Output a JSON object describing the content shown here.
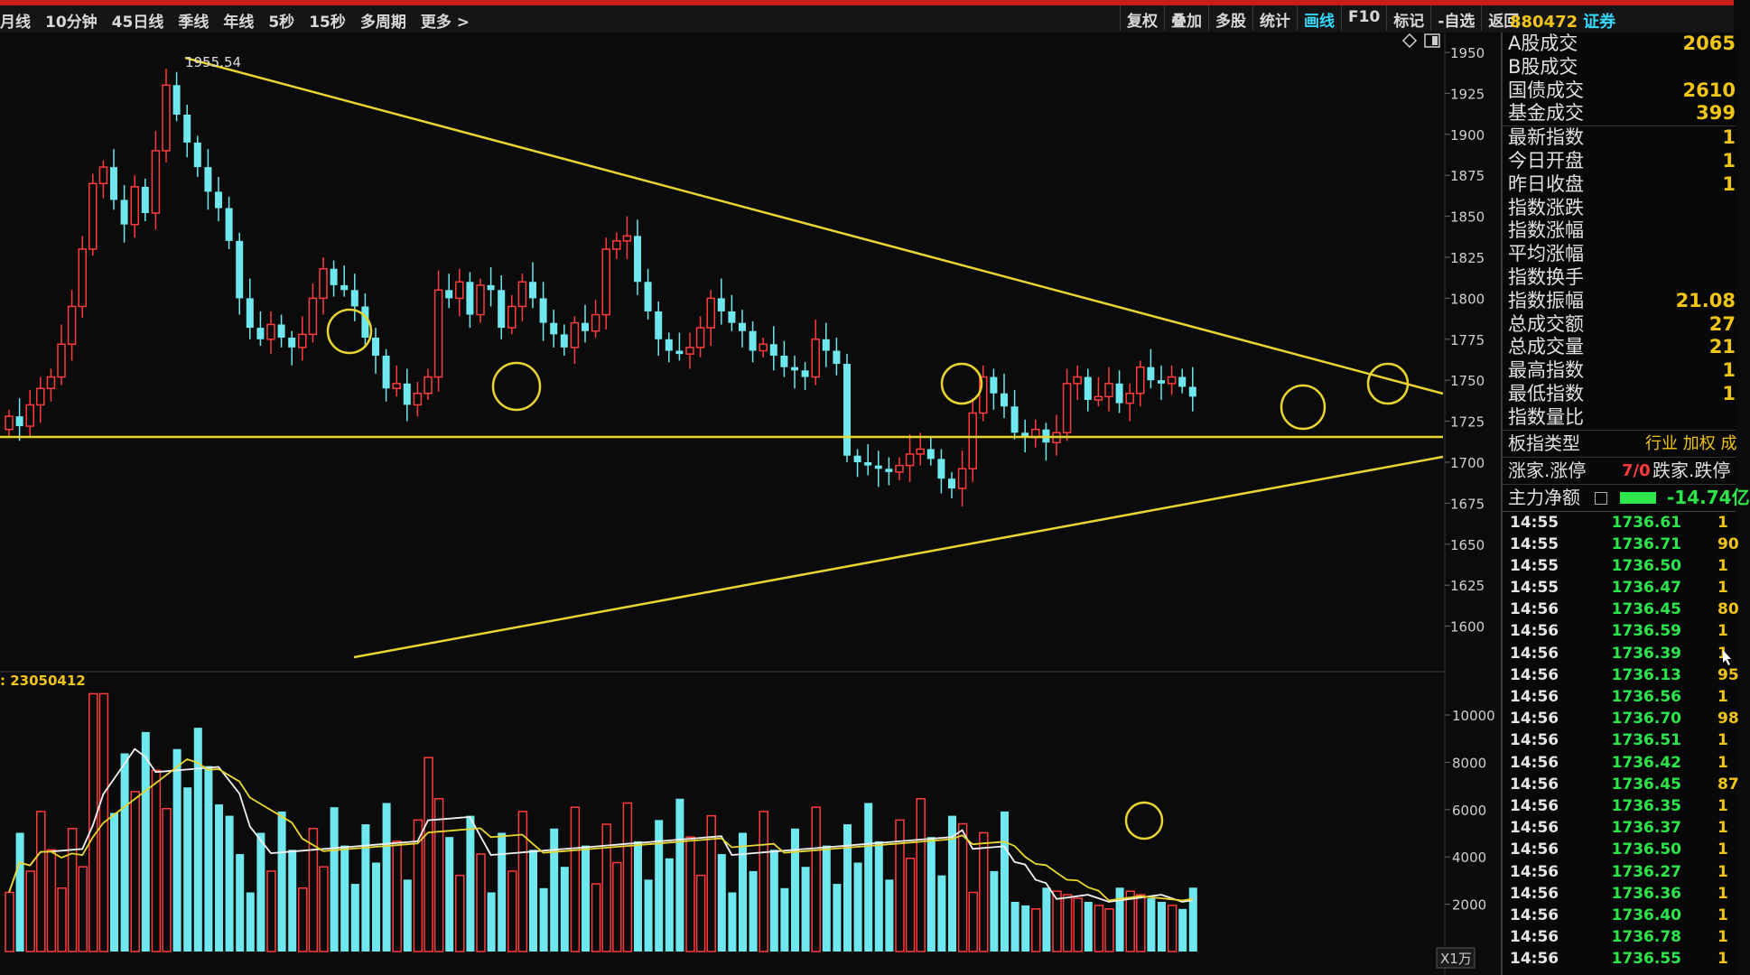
{
  "toolbar": {
    "periods": [
      "月线",
      "10分钟",
      "45日线",
      "季线",
      "年线",
      "5秒",
      "15秒",
      "多周期",
      "更多 >"
    ],
    "tools": [
      "复权",
      "叠加",
      "多股",
      "统计",
      "画线",
      "F10",
      "标记",
      "-自选",
      "返回"
    ],
    "active_tool": "画线"
  },
  "security": {
    "code": "880472",
    "name": "证券"
  },
  "price_chart": {
    "y_axis_ticks": [
      "1950",
      "1925",
      "1900",
      "1875",
      "1850",
      "1825",
      "1800",
      "1775",
      "1750",
      "1725",
      "1700",
      "1675",
      "1650",
      "1625",
      "1600"
    ],
    "high_label": "1955.54",
    "up_color": "#ff3b3b",
    "down_color": "#6ee8ee",
    "line_color": "#e8d531"
  },
  "volume_chart": {
    "label": ": 23050412",
    "y_axis_ticks": [
      "10000",
      "8000",
      "6000",
      "4000",
      "2000"
    ],
    "unit": "X1万"
  },
  "info_panel": {
    "rows": [
      {
        "label": "A股成交",
        "value": "2065"
      },
      {
        "label": "B股成交",
        "value": ""
      },
      {
        "label": "国债成交",
        "value": "2610"
      },
      {
        "label": "基金成交",
        "value": "399"
      },
      {
        "label": "最新指数",
        "value": "1"
      },
      {
        "label": "今日开盘",
        "value": "1"
      },
      {
        "label": "昨日收盘",
        "value": "1"
      },
      {
        "label": "指数涨跌",
        "value": ""
      },
      {
        "label": "指数涨幅",
        "value": ""
      },
      {
        "label": "平均涨幅",
        "value": ""
      },
      {
        "label": "指数换手",
        "value": ""
      },
      {
        "label": "指数振幅",
        "value": "21.08"
      },
      {
        "label": "总成交额",
        "value": "27"
      },
      {
        "label": "总成交量",
        "value": "21"
      },
      {
        "label": "最高指数",
        "value": "1"
      },
      {
        "label": "最低指数",
        "value": "1"
      },
      {
        "label": "指数量比",
        "value": ""
      }
    ],
    "board_type": {
      "label": "板指类型",
      "value": "行业 加权 成"
    },
    "limit": {
      "label": "涨家.涨停",
      "value": "7/0",
      "label2": "跌家.跌停"
    },
    "main_flow": {
      "label": "主力净额",
      "value": "-14.74亿"
    }
  },
  "ticks": [
    {
      "time": "14:55",
      "price": "1736.61",
      "vol": "1"
    },
    {
      "time": "14:55",
      "price": "1736.71",
      "vol": "90"
    },
    {
      "time": "14:55",
      "price": "1736.50",
      "vol": "1"
    },
    {
      "time": "14:55",
      "price": "1736.47",
      "vol": "1"
    },
    {
      "time": "14:56",
      "price": "1736.45",
      "vol": "80"
    },
    {
      "time": "14:56",
      "price": "1736.59",
      "vol": "1"
    },
    {
      "time": "14:56",
      "price": "1736.39",
      "vol": "1"
    },
    {
      "time": "14:56",
      "price": "1736.13",
      "vol": "95"
    },
    {
      "time": "14:56",
      "price": "1736.56",
      "vol": "1"
    },
    {
      "time": "14:56",
      "price": "1736.70",
      "vol": "98"
    },
    {
      "time": "14:56",
      "price": "1736.51",
      "vol": "1"
    },
    {
      "time": "14:56",
      "price": "1736.42",
      "vol": "1"
    },
    {
      "time": "14:56",
      "price": "1736.45",
      "vol": "87"
    },
    {
      "time": "14:56",
      "price": "1736.35",
      "vol": "1"
    },
    {
      "time": "14:56",
      "price": "1736.37",
      "vol": "1"
    },
    {
      "time": "14:56",
      "price": "1736.50",
      "vol": "1"
    },
    {
      "time": "14:56",
      "price": "1736.27",
      "vol": "1"
    },
    {
      "time": "14:56",
      "price": "1736.36",
      "vol": "1"
    },
    {
      "time": "14:56",
      "price": "1736.40",
      "vol": "1"
    },
    {
      "time": "14:56",
      "price": "1736.78",
      "vol": "1"
    },
    {
      "time": "14:56",
      "price": "1736.55",
      "vol": "1"
    }
  ]
}
